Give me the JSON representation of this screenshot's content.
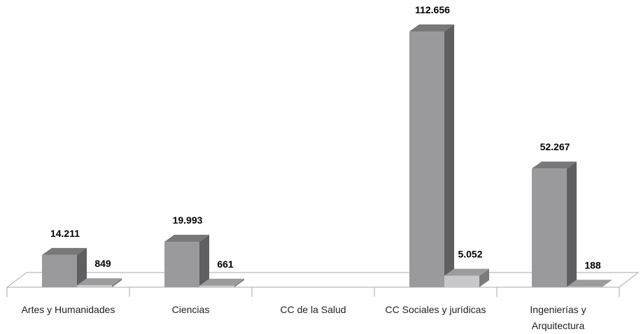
{
  "chart_data": {
    "type": "bar3d",
    "categories": [
      "Artes y Humanidades",
      "Ciencias",
      "CC de la Salud",
      "CC Sociales y jurídicas",
      "Ingenierías y Arquitectura"
    ],
    "series": [
      {
        "color": "#9a9a9c",
        "values": [
          14211,
          19993,
          null,
          112656,
          52267
        ],
        "value_labels": [
          "14.211",
          "19.993",
          null,
          "112.656",
          "52.267"
        ]
      },
      {
        "color": "#c8c8ca",
        "values": [
          849,
          661,
          null,
          5052,
          188
        ],
        "value_labels": [
          "849",
          "661",
          null,
          "5.052",
          "188"
        ]
      }
    ]
  }
}
